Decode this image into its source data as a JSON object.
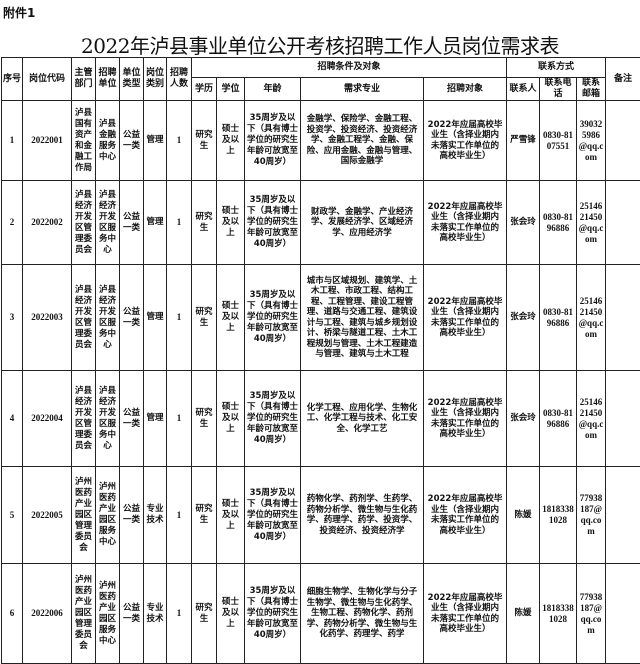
{
  "attachment_label": "附件1",
  "title": "2022年泸县事业单位公开考核招聘工作人员岗位需求表",
  "headers": {
    "seq": "序号",
    "code": "岗位代码",
    "dept": "主管部门",
    "unit": "招聘单位",
    "unit_type": "单位类型",
    "post_type": "岗位类别",
    "count": "招聘人数",
    "conditions": "招聘条件及对象",
    "education": "学历",
    "degree": "学位",
    "age": "年龄",
    "major": "需求专业",
    "target": "招聘对象",
    "contact": "联系方式",
    "contact_person": "联系人",
    "phone": "联系电话",
    "email": "联系邮箱",
    "remark": "备注"
  },
  "rows": [
    {
      "seq": "1",
      "code": "2022001",
      "dept": "泸县国有资产和金融工作局",
      "unit": "泸县金融服务中心",
      "unit_type": "公益一类",
      "post_type": "管理",
      "count": "1",
      "education": "研究生",
      "degree": "硕士及以上",
      "age": "35周岁及以下（具有博士学位的研究生年龄可放宽至40周岁）",
      "major": "金融学、保险学、金融工程、投资学、投资经济、投资经济学、金融工程学、金融、保险、应用金融、金融与管理、国际金融学",
      "target": "2022年应届高校毕业生（含择业期内未落实工作单位的高校毕业生）",
      "contact_person": "严雪锋",
      "phone": "0830-8107551",
      "email": "390325986@qq.com",
      "remark": ""
    },
    {
      "seq": "2",
      "code": "2022002",
      "dept": "泸县经济开发区管理委员会",
      "unit": "泸县经济开发区服务中心",
      "unit_type": "公益一类",
      "post_type": "管理",
      "count": "1",
      "education": "研究生",
      "degree": "硕士及以上",
      "age": "35周岁及以下（具有博士学位的研究生年龄可放宽至40周岁）",
      "major": "财政学、金融学、产业经济学、发展经济学、区域经济学、应用经济学",
      "target": "2022年应届高校毕业生（含择业期内未落实工作单位的高校毕业生）",
      "contact_person": "张会玲",
      "phone": "0830-8196886",
      "email": "2514621450@qq.com",
      "remark": ""
    },
    {
      "seq": "3",
      "code": "2022003",
      "dept": "泸县经济开发区管理委员会",
      "unit": "泸县经济开发区服务中心",
      "unit_type": "公益一类",
      "post_type": "管理",
      "count": "1",
      "education": "研究生",
      "degree": "硕士及以上",
      "age": "35周岁及以下（具有博士学位的研究生年龄可放宽至40周岁）",
      "major": "城市与区域规划、建筑学、土木工程、市政工程、结构工程、工程管理、建设工程管理、道路与交通工程、建筑设计与工程、建筑与城乡规划设计、桥梁与隧道工程、土木工程规划与管理、土木工程建造与管理、建筑与土木工程",
      "target": "2022年应届高校毕业生（含择业期内未落实工作单位的高校毕业生）",
      "contact_person": "张会玲",
      "phone": "0830-8196886",
      "email": "2514621450@qq.com",
      "remark": ""
    },
    {
      "seq": "4",
      "code": "2022004",
      "dept": "泸县经济开发区管理委员会",
      "unit": "泸县经济开发区服务中心",
      "unit_type": "公益一类",
      "post_type": "管理",
      "count": "1",
      "education": "研究生",
      "degree": "硕士及以上",
      "age": "35周岁及以下（具有博士学位的研究生年龄可放宽至40周岁）",
      "major": "化学工程、应用化学、生物化工、化学工程与技术、化工安全、化学工艺",
      "target": "2022年应届高校毕业生（含择业期内未落实工作单位的高校毕业生）",
      "contact_person": "张会玲",
      "phone": "0830-8196886",
      "email": "2514621450@qq.com",
      "remark": ""
    },
    {
      "seq": "5",
      "code": "2022005",
      "dept": "泸州医药产业园区管理委员会",
      "unit": "泸州医药产业园区服务中心",
      "unit_type": "公益一类",
      "post_type": "专业技术",
      "count": "1",
      "education": "研究生",
      "degree": "硕士及以上",
      "age": "35周岁及以下（具有博士学位的研究生年龄可放宽至40周岁）",
      "major": "药物化学、药剂学、生药学、药物分析学、微生物与生化药学、药理学、药学、投资学、投资经济、投资经济学",
      "target": "2022年应届高校毕业生（含择业期内未落实工作单位的高校毕业生）",
      "contact_person": "陈媛",
      "phone": "18183381028",
      "email": "77938187@qq.com",
      "remark": ""
    },
    {
      "seq": "6",
      "code": "2022006",
      "dept": "泸州医药产业园区管理委员会",
      "unit": "泸州医药产业园区服务中心",
      "unit_type": "公益一类",
      "post_type": "专业技术",
      "count": "1",
      "education": "研究生",
      "degree": "硕士及以上",
      "age": "35周岁及以下（具有博士学位的研究生年龄可放宽至40周岁）",
      "major": "细胞生物学、生物化学与分子生物学、微生物与生化药学、生物工程、药物化学、药剂学、药物分析学、微生物与生化药学、药理学、药学",
      "target": "2022年应届高校毕业生（含择业期内未落实工作单位的高校毕业生）",
      "contact_person": "陈媛",
      "phone": "18183381028",
      "email": "77938187@qq.com",
      "remark": ""
    }
  ]
}
